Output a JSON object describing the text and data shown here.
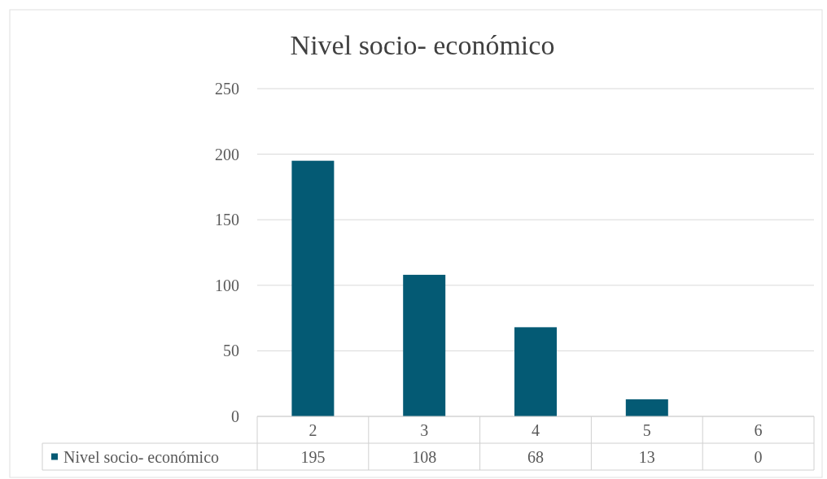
{
  "chart_data": {
    "type": "bar",
    "title": "Nivel socio- económico",
    "categories": [
      "2",
      "3",
      "4",
      "5",
      "6"
    ],
    "series": [
      {
        "name": "Nivel socio- económico",
        "color": "#045a74",
        "values": [
          195,
          108,
          68,
          13,
          0
        ]
      }
    ],
    "ylim": [
      0,
      250
    ],
    "yticks": [
      0,
      50,
      100,
      150,
      200,
      250
    ],
    "grid": "y",
    "data_labels": true,
    "legend": "bottom"
  }
}
